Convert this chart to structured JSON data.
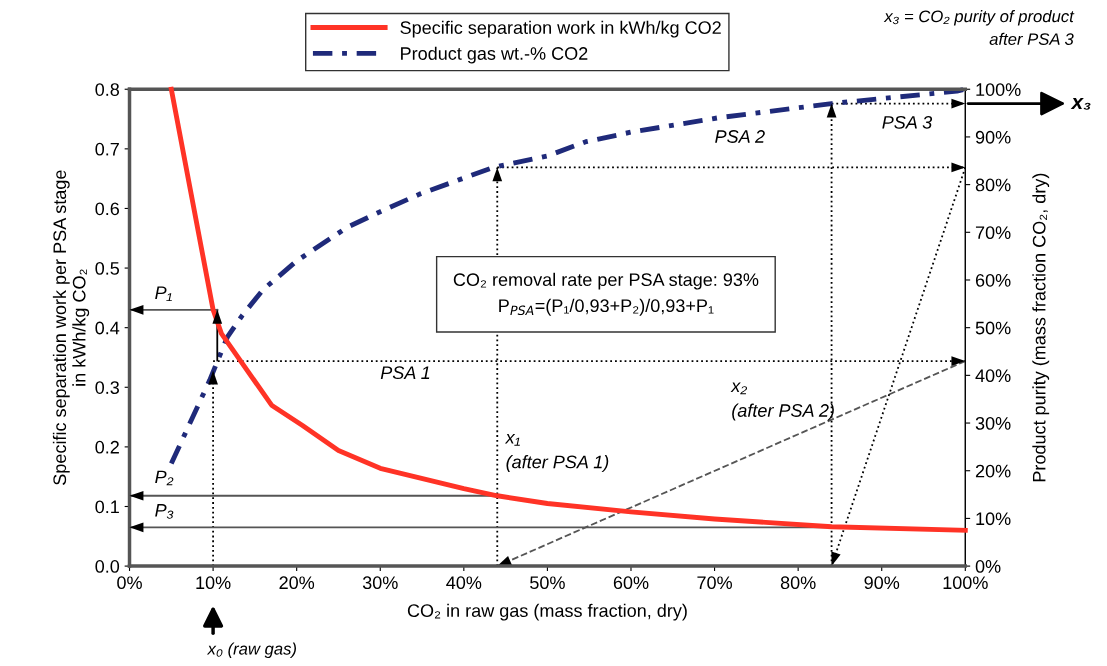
{
  "chart_data": {
    "type": "line",
    "xlabel": "CO₂ in raw gas (mass fraction, dry)",
    "ylabel": "Specific separation work per PSA stage\nin kWh/kg CO₂",
    "y2label": "Product purity (mass fraction CO₂, dry)",
    "xlim": [
      0,
      100
    ],
    "xticks": [
      {
        "value": 0,
        "label": "0%"
      },
      {
        "value": 10,
        "label": "10%"
      },
      {
        "value": 20,
        "label": "20%"
      },
      {
        "value": 30,
        "label": "30%"
      },
      {
        "value": 40,
        "label": "40%"
      },
      {
        "value": 50,
        "label": "50%"
      },
      {
        "value": 60,
        "label": "60%"
      },
      {
        "value": 70,
        "label": "70%"
      },
      {
        "value": 80,
        "label": "80%"
      },
      {
        "value": 90,
        "label": "90%"
      },
      {
        "value": 100,
        "label": "100%"
      }
    ],
    "ylim": [
      0,
      0.8
    ],
    "yticks": [
      {
        "value": 0,
        "label": "0.0"
      },
      0.1,
      0.2,
      0.3,
      0.4,
      0.5,
      0.6,
      0.7,
      0.8
    ],
    "y2lim": [
      0,
      100
    ],
    "y2ticks": [
      {
        "value": 0,
        "label": "0%"
      },
      {
        "value": 10,
        "label": "10%"
      },
      {
        "value": 20,
        "label": "20%"
      },
      {
        "value": 30,
        "label": "30%"
      },
      {
        "value": 40,
        "label": "40%"
      },
      {
        "value": 50,
        "label": "50%"
      },
      {
        "value": 60,
        "label": "60%"
      },
      {
        "value": 70,
        "label": "70%"
      },
      {
        "value": 80,
        "label": "80%"
      },
      {
        "value": 90,
        "label": "90%"
      },
      {
        "value": 100,
        "label": "100%"
      }
    ],
    "grid": false,
    "legend": "top",
    "series": [
      {
        "name": "Specific separation work in kWh/kg CO2",
        "color": "#ff3326",
        "line_style": "solid",
        "axis": "y",
        "x": [
          5,
          10,
          11,
          17,
          20.7,
          25,
          30,
          40,
          44,
          50,
          60,
          70,
          84,
          100
        ],
        "values": [
          0.8,
          0.43,
          0.39,
          0.27,
          0.236,
          0.194,
          0.164,
          0.13,
          0.118,
          0.105,
          0.091,
          0.079,
          0.066,
          0.06
        ]
      },
      {
        "name": "Product gas wt.-% CO2",
        "color": "#1f2a7a",
        "line_style": "dashed",
        "axis": "y2",
        "x": [
          5,
          9.6,
          11.7,
          13.5,
          16,
          20,
          26,
          29.6,
          34.7,
          43.5,
          50,
          54.6,
          60,
          70.4,
          84,
          99,
          100
        ],
        "values": [
          21.5,
          39,
          48,
          52.6,
          58,
          64,
          71,
          74,
          78,
          83.6,
          86,
          89,
          91,
          94,
          97,
          99.6,
          100
        ]
      },
      {
        "color": "#000000",
        "line_style": "dotted",
        "axis": "y2",
        "x": [
          10,
          10
        ],
        "values": [
          0,
          41
        ]
      },
      {
        "color": "#000000",
        "line_style": "dotted",
        "axis": "y2",
        "x": [
          10,
          100
        ],
        "values": [
          43,
          43
        ]
      },
      {
        "color": "#555555",
        "line_style": "dashed",
        "axis": "y2",
        "x": [
          100,
          44
        ],
        "values": [
          43,
          0
        ]
      },
      {
        "color": "#000000",
        "line_style": "dotted",
        "axis": "y2",
        "x": [
          44,
          44
        ],
        "values": [
          0,
          83.6
        ]
      },
      {
        "color": "#000000",
        "line_style": "dotted",
        "axis": "y2",
        "x": [
          44,
          100
        ],
        "values": [
          83.6,
          83.6
        ]
      },
      {
        "color": "#000000",
        "line_style": "dotted",
        "axis": "y2",
        "x": [
          100,
          84
        ],
        "values": [
          83.6,
          0
        ]
      },
      {
        "color": "#000000",
        "line_style": "dotted",
        "axis": "y2",
        "x": [
          84,
          84
        ],
        "values": [
          0,
          97
        ]
      },
      {
        "color": "#000000",
        "line_style": "dotted",
        "axis": "y2",
        "x": [
          84,
          100
        ],
        "values": [
          97,
          97
        ]
      },
      {
        "color": "#000000",
        "line_style": "solid",
        "axis": "y",
        "x": [
          10.5,
          10.5
        ],
        "values": [
          0.345,
          0.43
        ]
      },
      {
        "color": "#555555",
        "line_style": "solid",
        "axis": "y",
        "x": [
          10.5,
          0
        ],
        "values": [
          0.43,
          0.43
        ]
      },
      {
        "color": "#555555",
        "line_style": "solid",
        "axis": "y",
        "x": [
          44,
          0
        ],
        "values": [
          0.118,
          0.118
        ]
      },
      {
        "color": "#555555",
        "line_style": "solid",
        "axis": "y",
        "x": [
          84,
          0
        ],
        "values": [
          0.065,
          0.065
        ]
      }
    ],
    "annotations": [
      "x₃ = CO₂ purity of product\nafter PSA 3",
      "CO₂ removal rate per PSA stage: 93%\nP$_{PSA}$=(P₁/0,93+P₂)/0,93+P₁",
      {
        "text": "P₁",
        "x": 5,
        "y": 0.43
      },
      {
        "text": "P₂",
        "x": 5,
        "y": 0.118
      },
      {
        "text": "P₃",
        "x": 5,
        "y": 0.065
      },
      {
        "text": "PSA 1",
        "x": 30,
        "y": 0.344
      },
      {
        "text": "PSA 2",
        "x": 70,
        "y": 0.669
      },
      {
        "text": "PSA 3",
        "x": 92,
        "y": 0.776
      },
      {
        "text": "x₁\n(after PSA 1)",
        "x": 44,
        "y": 0.118
      },
      {
        "text": "x₂\n(after PSA 2)",
        "x": 84,
        "y": 0.344
      },
      "x₀ (raw gas)",
      "x₃"
    ]
  }
}
